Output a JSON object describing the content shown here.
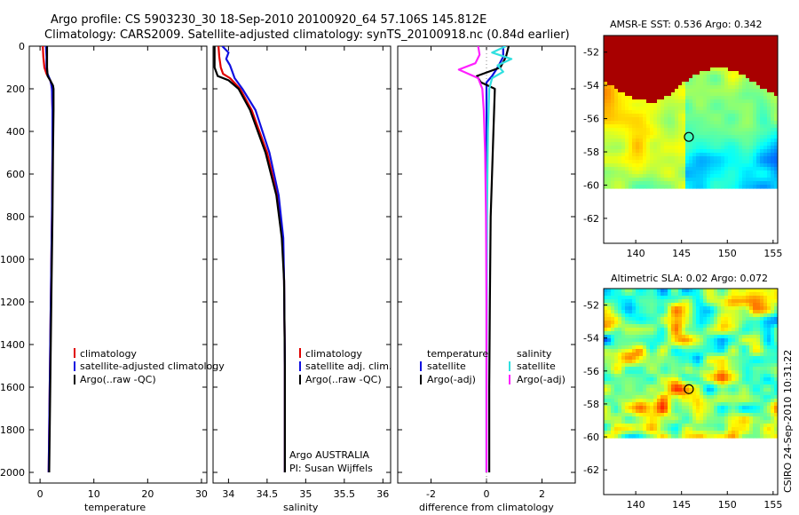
{
  "title_line1": "Argo profile: CS 5903230_30 18-Sep-2010 20100920_64 57.106S 145.812E",
  "title_line2": "Climatology: CARS2009. Satellite-adjusted climatology: synTS_20100918.nc (0.84d earlier)",
  "colors": {
    "climatology": "#e00000",
    "satellite": "#1010e0",
    "argo": "#000000",
    "sat_salinity": "#30e0e0",
    "argo_adj_salinity": "#ff20ff"
  },
  "chart_data": [
    {
      "type": "line",
      "xlabel": "temperature",
      "ylabel": "",
      "xlim": [
        -2,
        31
      ],
      "ylim": [
        2050,
        0
      ],
      "xticks": [
        "0",
        "10",
        "20",
        "30"
      ],
      "yticks": [
        "0",
        "200",
        "400",
        "600",
        "800",
        "1000",
        "1200",
        "1400",
        "1600",
        "1800",
        "2000"
      ],
      "legend": [
        "climatology",
        "satellite-adjusted climatology",
        "Argo(..raw -QC)"
      ],
      "series": [
        {
          "name": "climatology",
          "color": "climatology",
          "depth": [
            0,
            50,
            100,
            130,
            160,
            180,
            200,
            300,
            500,
            800,
            1200,
            1600,
            2000
          ],
          "values": [
            0.5,
            0.6,
            0.8,
            1.2,
            1.9,
            2.1,
            2.2,
            2.3,
            2.3,
            2.2,
            2.0,
            1.8,
            1.6
          ]
        },
        {
          "name": "satellite-adjusted climatology",
          "color": "satellite",
          "depth": [
            0,
            50,
            100,
            130,
            160,
            180,
            200,
            300,
            500,
            800,
            1200,
            1600,
            2000
          ],
          "values": [
            1.1,
            1.2,
            1.2,
            1.4,
            1.9,
            2.1,
            2.2,
            2.3,
            2.3,
            2.2,
            2.0,
            1.8,
            1.6
          ]
        },
        {
          "name": "Argo(..raw -QC)",
          "color": "argo",
          "depth": [
            0,
            50,
            100,
            140,
            165,
            185,
            200,
            300,
            500,
            800,
            1200,
            1600,
            2000
          ],
          "values": [
            1.3,
            1.3,
            1.3,
            1.4,
            2.0,
            2.4,
            2.5,
            2.5,
            2.4,
            2.3,
            2.1,
            1.9,
            1.7
          ]
        }
      ]
    },
    {
      "type": "line",
      "xlabel": "salinity",
      "xlim": [
        33.8,
        36.1
      ],
      "ylim": [
        2050,
        0
      ],
      "xticks": [
        "34",
        "34.5",
        "35",
        "35.5",
        "36"
      ],
      "legend": [
        "climatology",
        "satellite adj. clim.",
        "Argo(..raw -QC)"
      ],
      "annotations": [
        "Argo AUSTRALIA",
        "PI: Susan Wijffels"
      ],
      "series": [
        {
          "name": "climatology",
          "color": "climatology",
          "depth": [
            0,
            50,
            100,
            130,
            150,
            200,
            300,
            500,
            700,
            900,
            1100,
            1500,
            2000
          ],
          "values": [
            33.87,
            33.88,
            33.9,
            33.93,
            34.02,
            34.15,
            34.3,
            34.5,
            34.63,
            34.7,
            34.72,
            34.73,
            34.73
          ]
        },
        {
          "name": "satellite adj. clim.",
          "color": "satellite",
          "depth": [
            0,
            30,
            60,
            90,
            120,
            150,
            200,
            300,
            500,
            700,
            900,
            1100,
            1500,
            2000
          ],
          "values": [
            33.92,
            34.0,
            33.97,
            34.02,
            34.05,
            34.08,
            34.18,
            34.35,
            34.53,
            34.65,
            34.71,
            34.72,
            34.73,
            34.73
          ]
        },
        {
          "name": "Argo(..raw -QC)",
          "color": "argo",
          "depth": [
            0,
            100,
            140,
            160,
            200,
            300,
            500,
            700,
            900,
            1100,
            1500,
            2000
          ],
          "values": [
            33.82,
            33.82,
            33.86,
            34.0,
            34.13,
            34.28,
            34.48,
            34.62,
            34.69,
            34.72,
            34.73,
            34.73
          ]
        }
      ]
    },
    {
      "type": "line",
      "xlabel": "difference from climatology",
      "xlim": [
        -3.2,
        3.2
      ],
      "ylim": [
        2050,
        0
      ],
      "xticks": [
        "-2",
        "0",
        "2"
      ],
      "legend_title_left": "temperature",
      "legend_title_right": "salinity",
      "legend_left": [
        "satellite",
        "Argo(-adj)"
      ],
      "legend_right": [
        "satellite",
        "Argo(-adj)"
      ],
      "series": [
        {
          "name": "temperature satellite",
          "color": "satellite",
          "depth": [
            0,
            50,
            100,
            140,
            170,
            200,
            400,
            800,
            1200,
            1600,
            2000
          ],
          "values": [
            0.6,
            0.6,
            0.4,
            0.2,
            0.0,
            0.0,
            0.0,
            0.0,
            0.0,
            0.0,
            0.0
          ]
        },
        {
          "name": "temperature Argo(-adj)",
          "color": "argo",
          "depth": [
            0,
            50,
            100,
            140,
            170,
            200,
            400,
            800,
            1200,
            1600,
            2000
          ],
          "values": [
            0.8,
            0.7,
            0.5,
            -0.35,
            -0.2,
            0.3,
            0.25,
            0.15,
            0.12,
            0.1,
            0.1
          ]
        },
        {
          "name": "salinity satellite",
          "color": "sat_salinity",
          "depth": [
            0,
            30,
            60,
            90,
            120,
            150,
            200,
            400,
            800,
            1200,
            1600,
            2000
          ],
          "values": [
            0.7,
            0.2,
            0.9,
            0.4,
            0.6,
            0.2,
            0.1,
            0.05,
            0.02,
            0.01,
            0.0,
            0.0
          ]
        },
        {
          "name": "salinity Argo(-adj)",
          "color": "argo_adj_salinity",
          "depth": [
            0,
            40,
            80,
            110,
            150,
            200,
            300,
            500,
            800,
            1200,
            1600,
            2000
          ],
          "values": [
            -0.3,
            -0.25,
            -0.4,
            -1.0,
            -0.3,
            -0.15,
            -0.1,
            -0.05,
            -0.02,
            0.0,
            0.0,
            0.0
          ]
        }
      ]
    },
    {
      "type": "heatmap",
      "title": "AMSR-E SST: 0.536  Argo: 0.342",
      "xlim": [
        136.5,
        155.5
      ],
      "ylim": [
        -63.5,
        -51
      ],
      "xticks": [
        "140",
        "145",
        "150",
        "155"
      ],
      "yticks": [
        "-52",
        "-54",
        "-56",
        "-58",
        "-60",
        "-62"
      ],
      "marker": {
        "lon": 145.8,
        "lat": -57.1
      },
      "data_extent_lat": [
        -60,
        -51
      ]
    },
    {
      "type": "heatmap",
      "title": "Altimetric SLA: 0.02  Argo: 0.072",
      "xlim": [
        136.5,
        155.5
      ],
      "ylim": [
        -63.5,
        -51
      ],
      "xticks": [
        "140",
        "145",
        "150",
        "155"
      ],
      "yticks": [
        "-52",
        "-54",
        "-56",
        "-58",
        "-60",
        "-62"
      ],
      "marker": {
        "lon": 145.8,
        "lat": -57.1
      },
      "data_extent_lat": [
        -60,
        -51
      ]
    }
  ],
  "footer": "CSIRO 24-Sep-2010 10:31:22"
}
